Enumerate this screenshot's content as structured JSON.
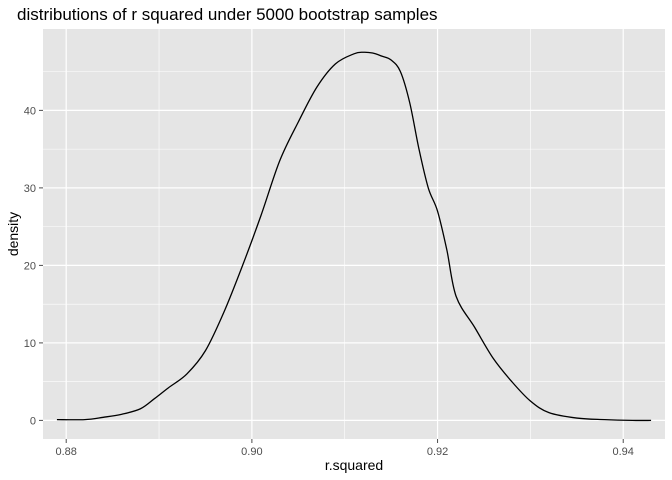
{
  "chart_data": {
    "type": "line",
    "title": "distributions of r squared under 5000 bootstrap samples",
    "xlabel": "r.squared",
    "ylabel": "density",
    "xlim": [
      0.8775,
      0.9445
    ],
    "ylim": [
      -2.4,
      50.5
    ],
    "x_ticks": [
      0.88,
      0.9,
      0.92,
      0.94
    ],
    "x_tick_labels": [
      "0.88",
      "0.90",
      "0.92",
      "0.94"
    ],
    "x_minor_ticks": [
      0.89,
      0.91,
      0.93
    ],
    "y_ticks": [
      0,
      10,
      20,
      30,
      40
    ],
    "y_tick_labels": [
      "0",
      "10",
      "20",
      "30",
      "40"
    ],
    "y_minor_ticks": [
      5,
      15,
      25,
      35,
      45
    ],
    "grid": true,
    "colors": {
      "panel": "#e5e5e5",
      "grid": "#ffffff",
      "line": "#000000",
      "tick": "#4d4d4d"
    },
    "series": [
      {
        "name": "density",
        "x": [
          0.879,
          0.882,
          0.884,
          0.886,
          0.888,
          0.8895,
          0.891,
          0.893,
          0.895,
          0.897,
          0.899,
          0.901,
          0.903,
          0.905,
          0.907,
          0.909,
          0.911,
          0.912,
          0.913,
          0.914,
          0.915,
          0.916,
          0.917,
          0.918,
          0.919,
          0.92,
          0.921,
          0.922,
          0.924,
          0.926,
          0.928,
          0.93,
          0.932,
          0.935,
          0.938,
          0.941,
          0.943
        ],
        "y": [
          0.1,
          0.1,
          0.4,
          0.8,
          1.5,
          2.8,
          4.2,
          6.0,
          9.0,
          14.0,
          20.0,
          26.5,
          33.5,
          38.5,
          43.0,
          46.0,
          47.3,
          47.5,
          47.4,
          47.0,
          46.5,
          45.0,
          41.0,
          35.0,
          30.0,
          27.0,
          22.0,
          16.0,
          12.0,
          8.0,
          5.0,
          2.5,
          1.0,
          0.3,
          0.1,
          0.0,
          0.0
        ]
      }
    ]
  }
}
